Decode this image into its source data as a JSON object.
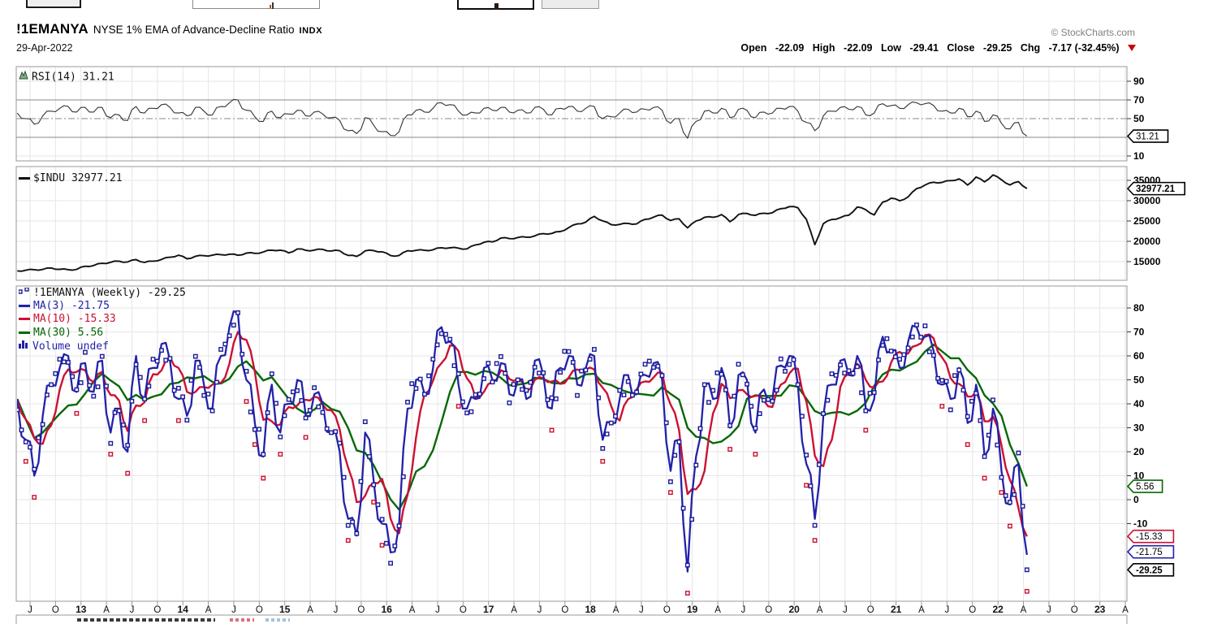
{
  "header": {
    "symbol": "!1EMANYA",
    "name": "NYSE 1% EMA of Advance-Decline Ratio",
    "exchange": "INDX",
    "copyright": "© StockCharts.com",
    "date": "29-Apr-2022",
    "quote": {
      "open_label": "Open",
      "open_value": "-22.09",
      "high_label": "High",
      "high_value": "-22.09",
      "low_label": "Low",
      "low_value": "-29.41",
      "close_label": "Close",
      "close_value": "-29.25",
      "chg_label": "Chg",
      "chg_value": "-7.17 (-32.45%)",
      "direction_icon": "down-triangle"
    }
  },
  "legends": {
    "rsi": "RSI(14) 31.21",
    "indu": "$INDU 32977.21",
    "main_symbol": "!1EMANYA (Weekly) -29.25",
    "ma3": "MA(3) -21.75",
    "ma10": "MA(10) -15.33",
    "ma30": "MA(30) 5.56",
    "volume": "Volume undef"
  },
  "colors": {
    "price_line": "#2222aa",
    "price_marker": "#1a1a99",
    "down_marker": "#cc1133",
    "ma10": "#cc1133",
    "ma30": "#056805",
    "indu": "#111111",
    "rsi": "#333333",
    "grid": "#e6e6e6",
    "panel_border": "#999999",
    "rsi_band": "#888888",
    "quote_triangle": "#cc0000",
    "copyright": "#808080",
    "axis_text": "#000000"
  },
  "axis": {
    "x_labels": [
      "J",
      "O",
      "13",
      "A",
      "J",
      "O",
      "14",
      "A",
      "J",
      "O",
      "15",
      "A",
      "J",
      "O",
      "16",
      "A",
      "J",
      "O",
      "17",
      "A",
      "J",
      "O",
      "18",
      "A",
      "J",
      "O",
      "19",
      "A",
      "J",
      "O",
      "20",
      "A",
      "J",
      "O",
      "21",
      "A",
      "J",
      "O",
      "22",
      "A",
      "J",
      "O",
      "23",
      "A"
    ],
    "rsi_ticks": [
      90,
      70,
      50,
      10
    ],
    "rsi_box": {
      "text": "31.21",
      "value": 31.21,
      "color": "#000000",
      "bold": false
    },
    "indu_ticks": [
      35000,
      30000,
      25000,
      20000,
      15000
    ],
    "indu_box": {
      "text": "32977.21",
      "value": 32977.21,
      "color": "#000000",
      "bold": true
    },
    "main_ticks": [
      80,
      70,
      60,
      50,
      40,
      30,
      20,
      10,
      0,
      -10
    ],
    "main_boxes": [
      {
        "text": "5.56",
        "value": 5.56,
        "color": "#056805",
        "bold": false
      },
      {
        "text": "-15.33",
        "value": -15.33,
        "color": "#cc1133",
        "bold": false
      },
      {
        "text": "-21.75",
        "value": -21.75,
        "color": "#2222aa",
        "bold": false
      },
      {
        "text": "-29.25",
        "value": -29.25,
        "color": "#000000",
        "bold": true
      }
    ]
  },
  "chart_data": [
    {
      "type": "line",
      "title": "RSI(14)",
      "current": 31.21,
      "x_start": "2012-05",
      "x_step_months": 1,
      "ylim": [
        5,
        105
      ],
      "overbought": 70,
      "midline": 50,
      "oversold": 30,
      "values": [
        56,
        50,
        44,
        53,
        58,
        61,
        63,
        57,
        62,
        57,
        62,
        51,
        54,
        48,
        63,
        56,
        61,
        65,
        62,
        56,
        53,
        62,
        58,
        54,
        63,
        67,
        70,
        59,
        52,
        47,
        58,
        51,
        55,
        59,
        53,
        57,
        55,
        51,
        48,
        37,
        34,
        51,
        43,
        36,
        32,
        36,
        54,
        59,
        57,
        61,
        67,
        65,
        58,
        54,
        56,
        61,
        59,
        62,
        57,
        59,
        56,
        62,
        60,
        54,
        61,
        63,
        58,
        61,
        63,
        50,
        52,
        56,
        60,
        57,
        60,
        62,
        59,
        45,
        50,
        29,
        47,
        58,
        56,
        61,
        51,
        60,
        59,
        51,
        57,
        56,
        61,
        63,
        58,
        46,
        37,
        53,
        58,
        62,
        60,
        63,
        54,
        56,
        66,
        64,
        61,
        65,
        67,
        66,
        64,
        58,
        56,
        61,
        52,
        58,
        47,
        54,
        45,
        39,
        46,
        31.21
      ]
    },
    {
      "type": "line",
      "title": "$INDU",
      "current": 32977.21,
      "x_start": "2012-05",
      "x_step_months": 1,
      "ylim": [
        10500,
        38500
      ],
      "values": [
        12720,
        12880,
        13010,
        13090,
        13440,
        13100,
        13030,
        13100,
        13860,
        14050,
        14580,
        14840,
        15110,
        14910,
        15500,
        14810,
        15130,
        15550,
        16090,
        16580,
        15700,
        16320,
        16460,
        16580,
        16720,
        16830,
        16560,
        17100,
        17040,
        17390,
        17830,
        17820,
        17160,
        18130,
        17780,
        17840,
        18010,
        17620,
        17690,
        16530,
        16280,
        17660,
        17720,
        17420,
        16470,
        16520,
        17690,
        17770,
        17790,
        17930,
        18430,
        18400,
        18310,
        18140,
        19120,
        19760,
        19860,
        20810,
        20660,
        20940,
        21010,
        21350,
        21890,
        21950,
        22400,
        23380,
        24270,
        24720,
        26150,
        25030,
        24100,
        24160,
        24420,
        24270,
        25420,
        25960,
        26460,
        25120,
        25540,
        23330,
        25000,
        25920,
        25930,
        26590,
        24820,
        26600,
        26860,
        26400,
        26920,
        27050,
        28050,
        28540,
        28260,
        25410,
        19170,
        24350,
        25380,
        25810,
        26430,
        28430,
        27780,
        26500,
        29640,
        30610,
        29980,
        30930,
        32980,
        33870,
        34530,
        34500,
        34940,
        35360,
        33840,
        35820,
        34640,
        36340,
        35130,
        33890,
        34680,
        32977.21
      ]
    },
    {
      "type": "scatter+line",
      "title": "!1EMANYA (Weekly)",
      "current": -29.25,
      "ma3_current": -21.75,
      "ma10_current": -15.33,
      "ma30_current": 5.56,
      "volume": "undef",
      "x_start": "2012-05",
      "x_step_months": 1,
      "ylim": [
        -42,
        90
      ],
      "values": [
        42,
        25,
        10,
        35,
        48,
        55,
        60,
        45,
        57,
        45,
        58,
        28,
        38,
        20,
        60,
        42,
        55,
        65,
        58,
        42,
        35,
        58,
        48,
        38,
        60,
        72,
        78,
        50,
        32,
        18,
        48,
        28,
        40,
        50,
        35,
        44,
        40,
        28,
        20,
        -8,
        -15,
        28,
        8,
        -10,
        -22,
        -10,
        38,
        50,
        44,
        55,
        72,
        66,
        48,
        38,
        42,
        55,
        50,
        57,
        44,
        50,
        42,
        58,
        52,
        38,
        55,
        60,
        48,
        55,
        60,
        25,
        32,
        42,
        52,
        44,
        52,
        57,
        50,
        12,
        25,
        -30,
        18,
        48,
        42,
        55,
        30,
        52,
        50,
        28,
        46,
        42,
        56,
        60,
        48,
        15,
        -8,
        35,
        48,
        58,
        52,
        60,
        38,
        42,
        68,
        62,
        55,
        66,
        72,
        68,
        62,
        48,
        42,
        55,
        32,
        48,
        18,
        38,
        12,
        -2,
        15,
        -29.25
      ]
    }
  ],
  "toolbar_partial": {
    "items": [
      "button",
      "text-input",
      "button",
      "button"
    ],
    "note": "top edge of page toolbar, cut off by screenshot"
  },
  "bottom_partial": {
    "note": "top sliver of next linked chart legend, cut off",
    "colors": [
      "#3a3a3a",
      "#d9707f",
      "#9fc3e0"
    ]
  }
}
